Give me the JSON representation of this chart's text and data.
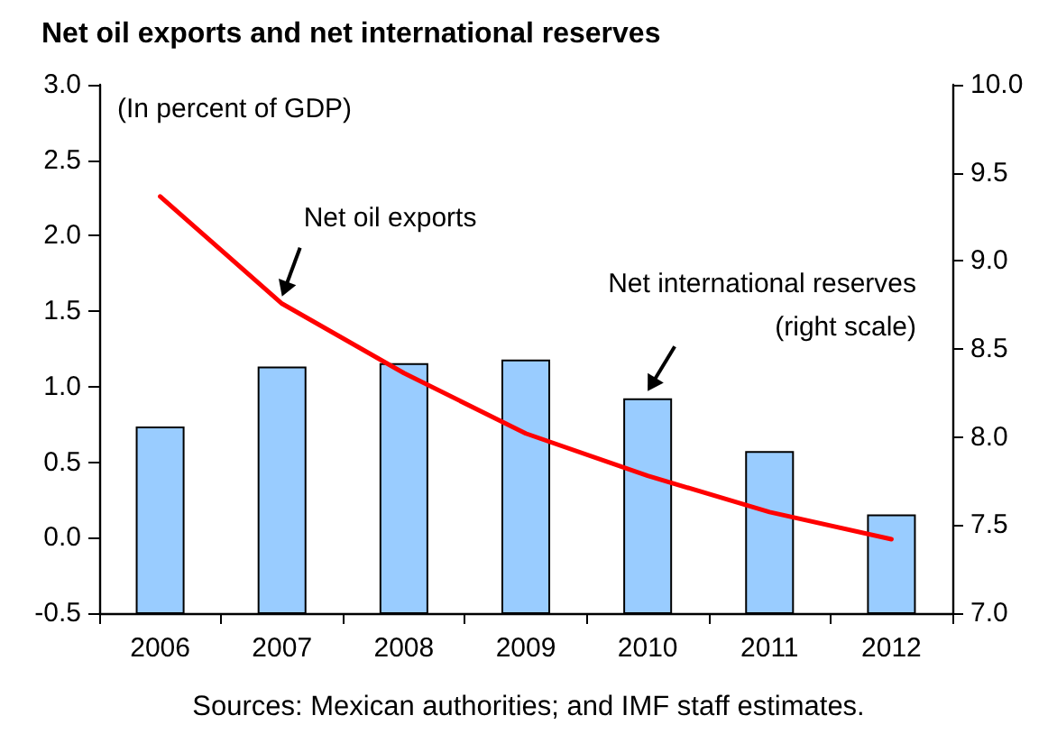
{
  "chart_data": {
    "type": "bar",
    "title": "Net oil exports and net international reserves",
    "categories": [
      "2006",
      "2007",
      "2008",
      "2009",
      "2010",
      "2011",
      "2012"
    ],
    "series": [
      {
        "name": "Net international reserves (right scale)",
        "axis": "y2",
        "color": "#99ccff",
        "values": [
          8.06,
          8.4,
          8.42,
          8.44,
          8.22,
          7.92,
          7.56
        ]
      },
      {
        "name": "Net oil exports",
        "type": "line",
        "color": "#ff0000",
        "values": [
          2.26,
          1.55,
          1.09,
          0.69,
          0.41,
          0.17,
          -0.01
        ]
      }
    ],
    "ylim": [
      -0.5,
      3.0
    ],
    "yticks": [
      -0.5,
      {
        "value": 0,
        "label": "0.0"
      },
      0.5,
      {
        "value": 1,
        "label": "1.0"
      },
      1.5,
      {
        "value": 2,
        "label": "2.0"
      },
      2.5,
      {
        "value": 3,
        "label": "3.0"
      }
    ],
    "y2lim": [
      7.0,
      10.0
    ],
    "y2ticks": [
      {
        "value": 7,
        "label": "7.0"
      },
      7.5,
      {
        "value": 8,
        "label": "8.0"
      },
      8.5,
      {
        "value": 9,
        "label": "9.0"
      },
      9.5,
      {
        "value": 10,
        "label": "10.0"
      }
    ],
    "grid": false,
    "legend": false,
    "marker": "none",
    "line_style": "solid",
    "annotations": [
      "(In percent of GDP)",
      "Sources: Mexican authorities; and IMF staff estimates."
    ]
  }
}
